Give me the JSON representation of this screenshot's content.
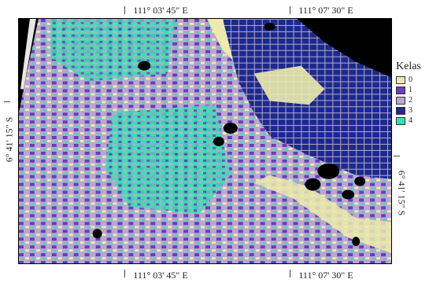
{
  "coordinates": {
    "top": [
      "111° 03' 45\" E",
      "111° 07' 30\" E"
    ],
    "bottom": [
      "111° 03' 45\" E",
      "111° 07' 30\" E"
    ],
    "left": "6° 41' 15\" S",
    "right": "6° 41' 15\" S"
  },
  "legend": {
    "title": "Kelas",
    "items": [
      {
        "label": "0",
        "color": "#ecebac"
      },
      {
        "label": "1",
        "color": "#6a3cc0"
      },
      {
        "label": "2",
        "color": "#b8a7cf"
      },
      {
        "label": "3",
        "color": "#1b2a8c"
      },
      {
        "label": "4",
        "color": "#30e3b0"
      }
    ]
  },
  "colors": {
    "nodata": "#000000",
    "border": "#444444"
  }
}
